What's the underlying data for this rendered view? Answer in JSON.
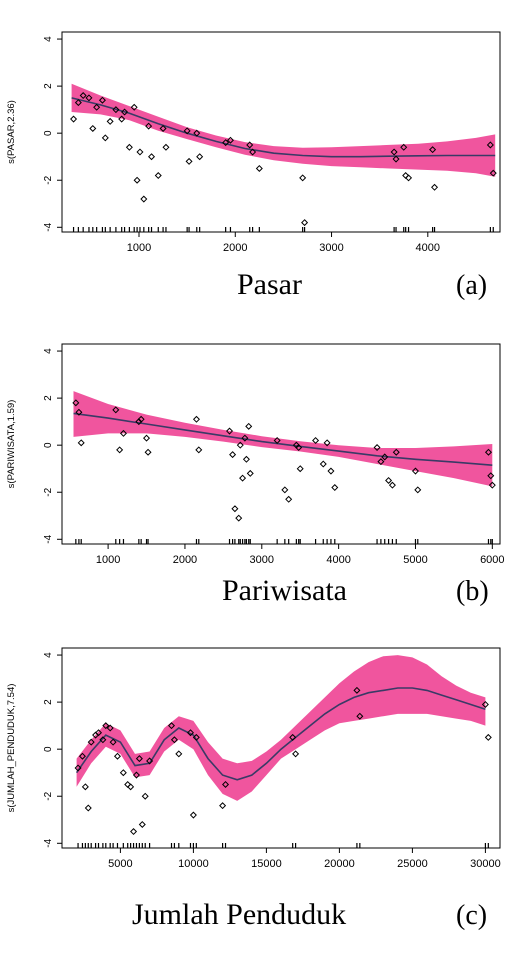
{
  "colors": {
    "band": "#f0559e",
    "line": "#3a3a66",
    "points": "#000000",
    "frame": "#000000"
  },
  "chart_data": [
    {
      "type": "line",
      "ylabel": "s(PASAR,2.36)",
      "xlabel": "Pasar",
      "tag": "(a)",
      "xlim": [
        200,
        4750
      ],
      "ylim": [
        -4.2,
        4.3
      ],
      "xticks": [
        1000,
        2000,
        3000,
        4000
      ],
      "yticks": [
        -4,
        -2,
        0,
        2,
        4
      ],
      "fit": {
        "x": [
          300,
          600,
          900,
          1200,
          1500,
          1800,
          2100,
          2400,
          2700,
          3000,
          3300,
          3600,
          3900,
          4200,
          4500,
          4700
        ],
        "y": [
          1.5,
          1.2,
          0.85,
          0.4,
          0.0,
          -0.35,
          -0.65,
          -0.85,
          -0.95,
          -1.0,
          -1.0,
          -0.98,
          -0.96,
          -0.95,
          -0.95,
          -0.95
        ]
      },
      "band": {
        "upper": [
          2.1,
          1.6,
          1.15,
          0.7,
          0.25,
          -0.1,
          -0.38,
          -0.55,
          -0.62,
          -0.6,
          -0.55,
          -0.5,
          -0.45,
          -0.35,
          -0.2,
          -0.05
        ],
        "lower": [
          0.9,
          0.8,
          0.55,
          0.1,
          -0.25,
          -0.6,
          -0.92,
          -1.15,
          -1.3,
          -1.4,
          -1.45,
          -1.5,
          -1.55,
          -1.6,
          -1.7,
          -1.85
        ]
      },
      "points": [
        [
          320,
          0.6
        ],
        [
          370,
          1.3
        ],
        [
          420,
          1.6
        ],
        [
          480,
          1.5
        ],
        [
          520,
          0.2
        ],
        [
          560,
          1.1
        ],
        [
          620,
          1.4
        ],
        [
          650,
          -0.2
        ],
        [
          700,
          0.5
        ],
        [
          760,
          1.0
        ],
        [
          820,
          0.6
        ],
        [
          850,
          0.9
        ],
        [
          900,
          -0.6
        ],
        [
          950,
          1.1
        ],
        [
          980,
          -2.0
        ],
        [
          1010,
          -0.8
        ],
        [
          1050,
          -2.8
        ],
        [
          1100,
          0.3
        ],
        [
          1130,
          -1.0
        ],
        [
          1200,
          -1.8
        ],
        [
          1250,
          0.2
        ],
        [
          1280,
          -0.6
        ],
        [
          1500,
          0.1
        ],
        [
          1520,
          -1.2
        ],
        [
          1600,
          0.0
        ],
        [
          1630,
          -1.0
        ],
        [
          1900,
          -0.4
        ],
        [
          1950,
          -0.3
        ],
        [
          2150,
          -0.5
        ],
        [
          2180,
          -0.8
        ],
        [
          2250,
          -1.5
        ],
        [
          2700,
          -1.9
        ],
        [
          2720,
          -3.8
        ],
        [
          3650,
          -0.8
        ],
        [
          3670,
          -1.1
        ],
        [
          3750,
          -0.6
        ],
        [
          3770,
          -1.8
        ],
        [
          3800,
          -1.9
        ],
        [
          4050,
          -0.7
        ],
        [
          4070,
          -2.3
        ],
        [
          4650,
          -0.5
        ],
        [
          4680,
          -1.7
        ]
      ],
      "rug": [
        320,
        370,
        420,
        480,
        520,
        560,
        620,
        650,
        700,
        760,
        820,
        850,
        900,
        950,
        980,
        1010,
        1050,
        1100,
        1130,
        1200,
        1250,
        1280,
        1500,
        1520,
        1600,
        1630,
        1900,
        1950,
        2150,
        2180,
        2250,
        2700,
        2720,
        3650,
        3670,
        3750,
        3770,
        3800,
        4050,
        4070,
        4650,
        4680
      ]
    },
    {
      "type": "line",
      "ylabel": "s(PARIWISATA,1.59)",
      "xlabel": "Pariwisata",
      "tag": "(b)",
      "xlim": [
        400,
        6100
      ],
      "ylim": [
        -4.2,
        4.3
      ],
      "xticks": [
        1000,
        2000,
        3000,
        4000,
        5000,
        6000
      ],
      "yticks": [
        -4,
        -2,
        0,
        2,
        4
      ],
      "fit": {
        "x": [
          550,
          1000,
          1500,
          2000,
          2500,
          3000,
          3500,
          4000,
          4500,
          5000,
          5500,
          6000
        ],
        "y": [
          1.35,
          1.15,
          0.9,
          0.65,
          0.4,
          0.15,
          -0.05,
          -0.25,
          -0.45,
          -0.6,
          -0.72,
          -0.85
        ]
      },
      "band": {
        "upper": [
          2.3,
          1.75,
          1.3,
          0.95,
          0.65,
          0.38,
          0.17,
          0.0,
          -0.12,
          -0.12,
          -0.05,
          0.05
        ],
        "lower": [
          0.35,
          0.5,
          0.5,
          0.35,
          0.15,
          -0.08,
          -0.27,
          -0.5,
          -0.8,
          -1.1,
          -1.4,
          -1.75
        ]
      },
      "points": [
        [
          580,
          1.8
        ],
        [
          620,
          1.4
        ],
        [
          650,
          0.1
        ],
        [
          1100,
          1.5
        ],
        [
          1150,
          -0.2
        ],
        [
          1200,
          0.5
        ],
        [
          1400,
          1.0
        ],
        [
          1430,
          1.1
        ],
        [
          1500,
          0.3
        ],
        [
          1520,
          -0.3
        ],
        [
          2150,
          1.1
        ],
        [
          2180,
          -0.2
        ],
        [
          2580,
          0.6
        ],
        [
          2620,
          -0.4
        ],
        [
          2650,
          -2.7
        ],
        [
          2700,
          -3.1
        ],
        [
          2720,
          0.0
        ],
        [
          2750,
          -1.4
        ],
        [
          2780,
          0.3
        ],
        [
          2800,
          -0.6
        ],
        [
          2830,
          0.8
        ],
        [
          2850,
          -1.2
        ],
        [
          3200,
          0.2
        ],
        [
          3300,
          -1.9
        ],
        [
          3350,
          -2.3
        ],
        [
          3450,
          0.0
        ],
        [
          3480,
          -0.1
        ],
        [
          3500,
          -1.0
        ],
        [
          3700,
          0.2
        ],
        [
          3800,
          -0.8
        ],
        [
          3850,
          0.1
        ],
        [
          3900,
          -1.1
        ],
        [
          3950,
          -1.8
        ],
        [
          4500,
          -0.1
        ],
        [
          4550,
          -0.7
        ],
        [
          4600,
          -0.5
        ],
        [
          4650,
          -1.5
        ],
        [
          4700,
          -1.7
        ],
        [
          4750,
          -0.3
        ],
        [
          5000,
          -1.1
        ],
        [
          5030,
          -1.9
        ],
        [
          5950,
          -0.3
        ],
        [
          5980,
          -1.3
        ],
        [
          6000,
          -1.7
        ]
      ],
      "rug": [
        580,
        620,
        650,
        1100,
        1150,
        1200,
        1400,
        1430,
        1500,
        1520,
        2150,
        2180,
        2580,
        2620,
        2650,
        2700,
        2720,
        2750,
        2780,
        2800,
        2830,
        2850,
        3200,
        3300,
        3350,
        3450,
        3480,
        3500,
        3700,
        3800,
        3850,
        3900,
        3950,
        4500,
        4550,
        4600,
        4650,
        4700,
        4750,
        5000,
        5030,
        5950,
        5980,
        6000
      ]
    },
    {
      "type": "line",
      "ylabel": "s(JUMLAH_PENDUDUK,7.54)",
      "xlabel": "Jumlah Penduduk",
      "tag": "(c)",
      "xlim": [
        1000,
        31000
      ],
      "ylim": [
        -4.2,
        4.3
      ],
      "xticks": [
        5000,
        10000,
        15000,
        20000,
        25000,
        30000
      ],
      "yticks": [
        -4,
        -2,
        0,
        2,
        4
      ],
      "fit": {
        "x": [
          2000,
          3000,
          4000,
          5000,
          6000,
          7000,
          8000,
          9000,
          10000,
          11000,
          12000,
          13000,
          14000,
          15000,
          16000,
          17000,
          18000,
          19000,
          20000,
          21000,
          22000,
          23000,
          24000,
          25000,
          26000,
          27000,
          28000,
          29000,
          30000
        ],
        "y": [
          -1.0,
          -0.1,
          0.6,
          0.3,
          -0.7,
          -0.6,
          0.4,
          0.9,
          0.6,
          -0.4,
          -1.1,
          -1.3,
          -1.1,
          -0.6,
          0.0,
          0.5,
          1.0,
          1.5,
          1.9,
          2.2,
          2.4,
          2.5,
          2.6,
          2.6,
          2.5,
          2.3,
          2.1,
          1.9,
          1.7
        ]
      },
      "band": {
        "upper": [
          -0.4,
          0.4,
          1.1,
          0.8,
          -0.2,
          -0.1,
          0.9,
          1.4,
          1.2,
          0.3,
          -0.4,
          -0.6,
          -0.5,
          -0.1,
          0.4,
          1.0,
          1.6,
          2.2,
          2.8,
          3.3,
          3.7,
          3.95,
          4.0,
          3.9,
          3.6,
          3.1,
          2.7,
          2.4,
          2.2
        ],
        "lower": [
          -1.6,
          -0.6,
          0.1,
          -0.2,
          -1.2,
          -1.1,
          -0.1,
          0.4,
          0.0,
          -1.1,
          -1.9,
          -2.2,
          -1.8,
          -1.1,
          -0.4,
          0.0,
          0.4,
          0.8,
          1.1,
          1.2,
          1.3,
          1.4,
          1.5,
          1.5,
          1.5,
          1.4,
          1.3,
          1.2,
          1.0
        ]
      },
      "points": [
        [
          2100,
          -0.8
        ],
        [
          2400,
          -0.3
        ],
        [
          2600,
          -1.6
        ],
        [
          2800,
          -2.5
        ],
        [
          3000,
          0.3
        ],
        [
          3300,
          0.6
        ],
        [
          3500,
          0.7
        ],
        [
          3800,
          0.4
        ],
        [
          4000,
          1.0
        ],
        [
          4300,
          0.9
        ],
        [
          4500,
          0.3
        ],
        [
          4800,
          -0.3
        ],
        [
          5200,
          -1.0
        ],
        [
          5500,
          -1.5
        ],
        [
          5700,
          -1.6
        ],
        [
          5900,
          -3.5
        ],
        [
          6100,
          -1.1
        ],
        [
          6300,
          -0.4
        ],
        [
          6500,
          -3.2
        ],
        [
          6700,
          -2.0
        ],
        [
          7000,
          -0.5
        ],
        [
          8500,
          1.0
        ],
        [
          8700,
          0.4
        ],
        [
          9000,
          -0.2
        ],
        [
          9800,
          0.7
        ],
        [
          10000,
          -2.8
        ],
        [
          10200,
          0.5
        ],
        [
          12000,
          -2.4
        ],
        [
          12200,
          -1.5
        ],
        [
          16800,
          0.5
        ],
        [
          17000,
          -0.2
        ],
        [
          21200,
          2.5
        ],
        [
          21400,
          1.4
        ],
        [
          30000,
          1.9
        ],
        [
          30200,
          0.5
        ]
      ],
      "rug": [
        2100,
        2400,
        2600,
        2800,
        3000,
        3300,
        3500,
        3800,
        4000,
        4300,
        4500,
        4800,
        5200,
        5500,
        5700,
        5900,
        6100,
        6300,
        6500,
        6700,
        7000,
        8500,
        8700,
        9000,
        9800,
        10000,
        10200,
        12000,
        12200,
        16800,
        17000,
        21200,
        21400,
        30000,
        30200
      ]
    }
  ]
}
